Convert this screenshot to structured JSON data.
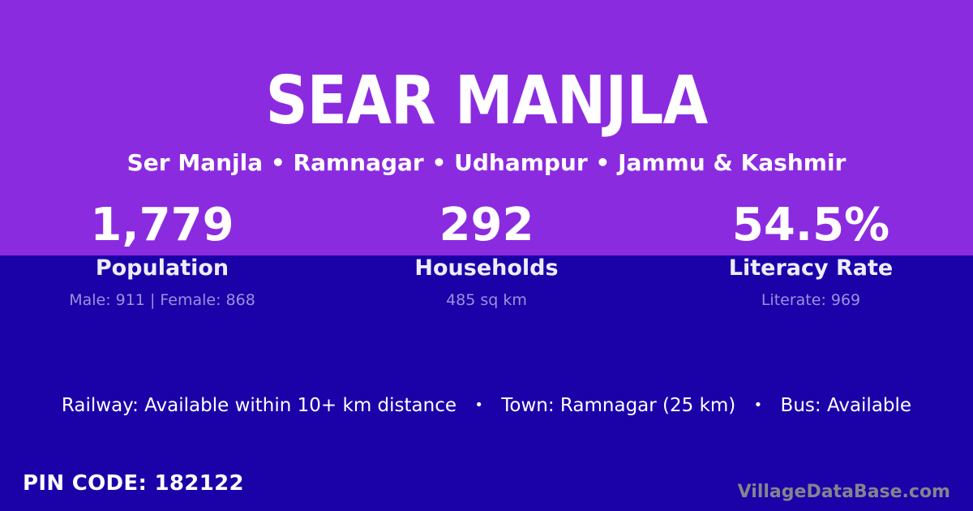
{
  "colors": {
    "hero_background": "#8B2BE0",
    "lower_background": "#1B01A8",
    "primary_text": "#FFFFFF",
    "stat_label_text": "#EFECF9",
    "stat_detail_text": "#9C90DE",
    "watermark_text": "#84848E"
  },
  "hero": {
    "title": "SEAR MANJLA",
    "location_breadcrumb": "Ser Manjla • Ramnagar • Udhampur • Jammu & Kashmir"
  },
  "stats": [
    {
      "value": "1,779",
      "label": "Population",
      "detail": "Male: 911 | Female: 868"
    },
    {
      "value": "292",
      "label": "Households",
      "detail": "485 sq km"
    },
    {
      "value": "54.5%",
      "label": "Literacy Rate",
      "detail": "Literate: 969"
    }
  ],
  "amenities": {
    "separator": "•",
    "items": [
      "Railway: Available within 10+ km distance",
      "Town: Ramnagar (25 km)",
      "Bus: Available"
    ]
  },
  "footer": {
    "pin_code": "PIN CODE: 182122",
    "watermark": "VillageDataBase.com"
  }
}
